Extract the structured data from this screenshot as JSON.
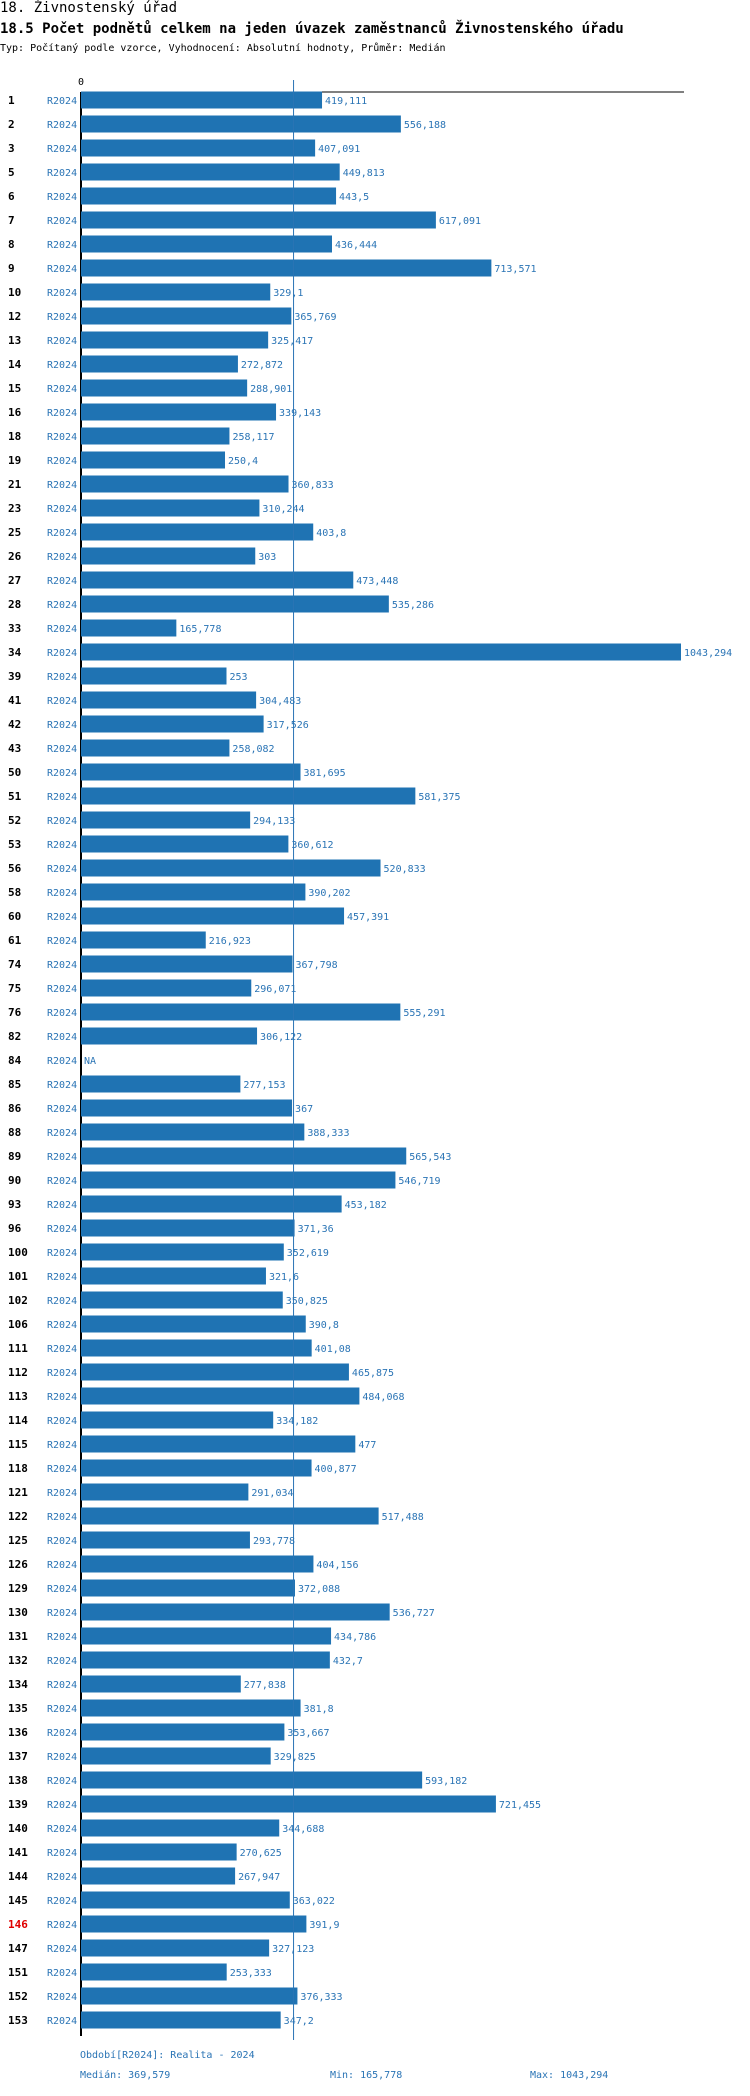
{
  "header": {
    "section": "18. Živnostenský úřad",
    "title": "18.5 Počet podnětů celkem na jeden úvazek zaměstnanců Živnostenského úřadu",
    "subtitle": "Typ: Počítaný podle vzorce, Vyhodnocení: Absolutní hodnoty, Průměr: Medián"
  },
  "colors": {
    "bar": "#1f73b3",
    "label": "#2a74b5",
    "highlight": "#e00000",
    "axis": "#000000",
    "median_line": "#2a74b5"
  },
  "chart_data": {
    "type": "bar",
    "orientation": "horizontal",
    "title": "18.5 Počet podnětů celkem na jeden úvazek zaměstnanců Živnostenského úřadu",
    "axis_zero_label": "0",
    "xlim": [
      0,
      1043.294
    ],
    "series_label": "R2024",
    "highlight_category": "146",
    "median": 369.579,
    "categories": [
      "1",
      "2",
      "3",
      "5",
      "6",
      "7",
      "8",
      "9",
      "10",
      "12",
      "13",
      "14",
      "15",
      "16",
      "18",
      "19",
      "21",
      "23",
      "25",
      "26",
      "27",
      "28",
      "33",
      "34",
      "39",
      "41",
      "42",
      "43",
      "50",
      "51",
      "52",
      "53",
      "56",
      "58",
      "60",
      "61",
      "74",
      "75",
      "76",
      "82",
      "84",
      "85",
      "86",
      "88",
      "89",
      "90",
      "93",
      "96",
      "100",
      "101",
      "102",
      "106",
      "111",
      "112",
      "113",
      "114",
      "115",
      "118",
      "121",
      "122",
      "125",
      "126",
      "129",
      "130",
      "131",
      "132",
      "134",
      "135",
      "136",
      "137",
      "138",
      "139",
      "140",
      "141",
      "144",
      "145",
      "146",
      "147",
      "151",
      "152",
      "153"
    ],
    "values": [
      419.111,
      556.188,
      407.091,
      449.813,
      443.5,
      617.091,
      436.444,
      713.571,
      329.1,
      365.769,
      325.417,
      272.872,
      288.901,
      339.143,
      258.117,
      250.4,
      360.833,
      310.244,
      403.8,
      303,
      473.448,
      535.286,
      165.778,
      1043.294,
      253,
      304.483,
      317.526,
      258.082,
      381.695,
      581.375,
      294.133,
      360.612,
      520.833,
      390.202,
      457.391,
      216.923,
      367.798,
      296.071,
      555.291,
      306.122,
      null,
      277.153,
      367,
      388.333,
      565.543,
      546.719,
      453.182,
      371.36,
      352.619,
      321.6,
      350.825,
      390.8,
      401.08,
      465.875,
      484.068,
      334.182,
      477,
      400.877,
      291.034,
      517.488,
      293.778,
      404.156,
      372.088,
      536.727,
      434.786,
      432.7,
      277.838,
      381.8,
      353.667,
      329.825,
      593.182,
      721.455,
      344.688,
      270.625,
      267.947,
      363.022,
      391.9,
      327.123,
      253.333,
      376.333,
      347.2
    ],
    "value_labels": [
      "419,111",
      "556,188",
      "407,091",
      "449,813",
      "443,5",
      "617,091",
      "436,444",
      "713,571",
      "329,1",
      "365,769",
      "325,417",
      "272,872",
      "288,901",
      "339,143",
      "258,117",
      "250,4",
      "360,833",
      "310,244",
      "403,8",
      "303",
      "473,448",
      "535,286",
      "165,778",
      "1043,294",
      "253",
      "304,483",
      "317,526",
      "258,082",
      "381,695",
      "581,375",
      "294,133",
      "360,612",
      "520,833",
      "390,202",
      "457,391",
      "216,923",
      "367,798",
      "296,071",
      "555,291",
      "306,122",
      "NA",
      "277,153",
      "367",
      "388,333",
      "565,543",
      "546,719",
      "453,182",
      "371,36",
      "352,619",
      "321,6",
      "350,825",
      "390,8",
      "401,08",
      "465,875",
      "484,068",
      "334,182",
      "477",
      "400,877",
      "291,034",
      "517,488",
      "293,778",
      "404,156",
      "372,088",
      "536,727",
      "434,786",
      "432,7",
      "277,838",
      "381,8",
      "353,667",
      "329,825",
      "593,182",
      "721,455",
      "344,688",
      "270,625",
      "267,947",
      "363,022",
      "391,9",
      "327,123",
      "253,333",
      "376,333",
      "347,2"
    ]
  },
  "footer": {
    "period": "Období[R2024]: Realita - 2024",
    "median": "Medián: 369,579",
    "min": "Min: 165,778",
    "max": "Max: 1043,294"
  }
}
